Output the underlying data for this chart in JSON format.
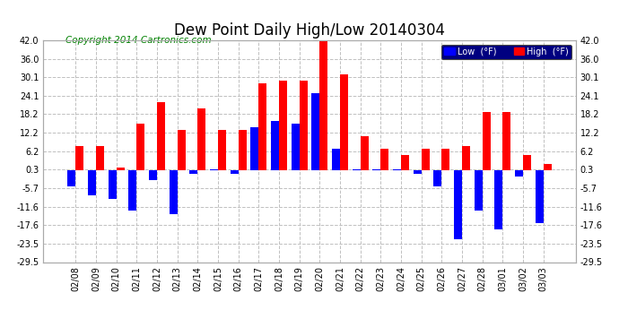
{
  "title": "Dew Point Daily High/Low 20140304",
  "copyright": "Copyright 2014 Cartronics.com",
  "dates": [
    "02/08",
    "02/09",
    "02/10",
    "02/11",
    "02/12",
    "02/13",
    "02/14",
    "02/15",
    "02/16",
    "02/17",
    "02/18",
    "02/19",
    "02/20",
    "02/21",
    "02/22",
    "02/23",
    "02/24",
    "02/25",
    "02/26",
    "02/27",
    "02/28",
    "03/01",
    "03/02",
    "03/03"
  ],
  "high": [
    8.0,
    8.0,
    1.0,
    15.0,
    22.0,
    13.0,
    20.0,
    13.0,
    13.0,
    28.0,
    29.0,
    29.0,
    43.0,
    31.0,
    11.0,
    7.0,
    5.0,
    7.0,
    7.0,
    8.0,
    19.0,
    19.0,
    5.0,
    2.0
  ],
  "low": [
    -5.0,
    -8.0,
    -9.0,
    -13.0,
    -3.0,
    -14.0,
    -1.0,
    0.5,
    -1.0,
    14.0,
    16.0,
    15.0,
    25.0,
    7.0,
    0.5,
    0.5,
    0.5,
    -1.0,
    -5.0,
    -22.0,
    -13.0,
    -19.0,
    -2.0,
    -17.0
  ],
  "high_color": "#ff0000",
  "low_color": "#0000ff",
  "background_color": "#ffffff",
  "grid_color": "#c0c0c0",
  "ylim": [
    -29.5,
    42.0
  ],
  "yticks": [
    42.0,
    36.0,
    30.1,
    24.1,
    18.2,
    12.2,
    6.2,
    0.3,
    -5.7,
    -11.6,
    -17.6,
    -23.5,
    -29.5
  ],
  "bar_width": 0.4,
  "title_fontsize": 12,
  "tick_fontsize": 7,
  "copyright_fontsize": 7.5
}
